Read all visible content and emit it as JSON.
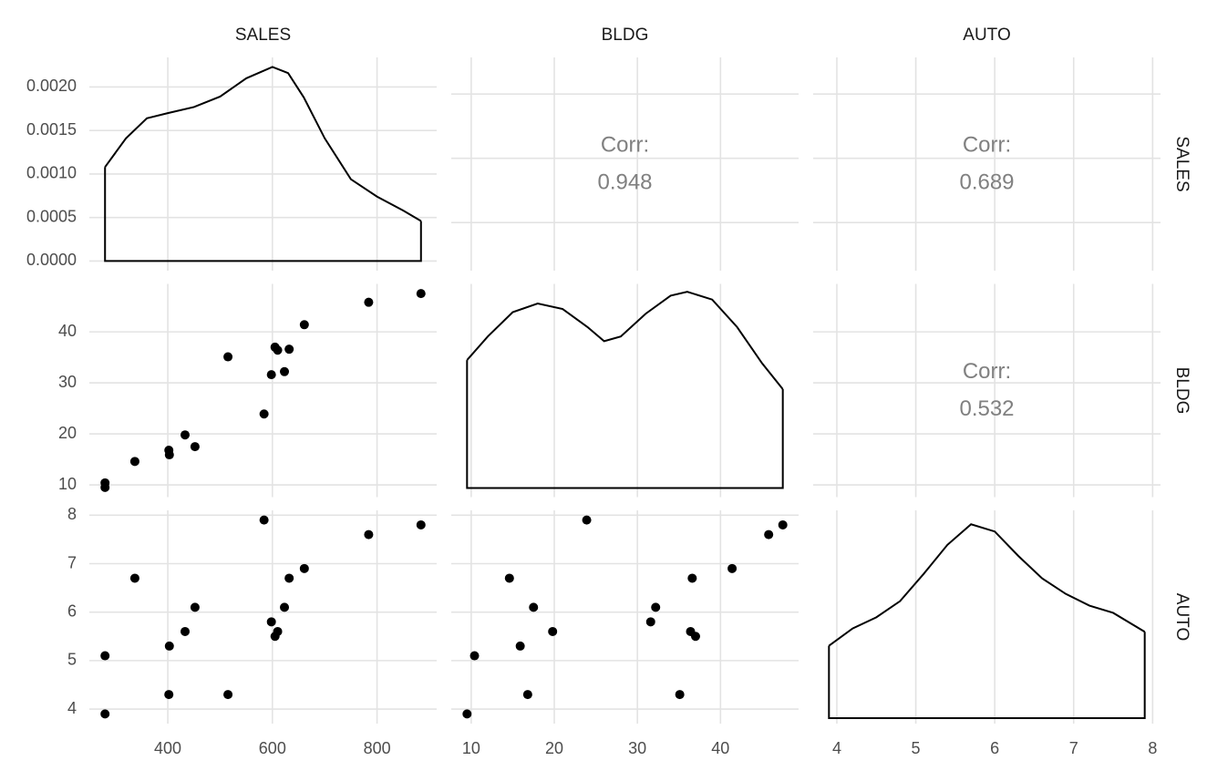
{
  "chart_data": {
    "type": "scatter_matrix",
    "point_color": "#000000",
    "line_color": "#000000",
    "grid": true,
    "variables": [
      {
        "name": "SALES",
        "lim": [
          250,
          914
        ],
        "ticks": [
          400,
          600,
          800
        ],
        "values": [
          280,
          280,
          337,
          403,
          402,
          452,
          433,
          584,
          598,
          623,
          515,
          610,
          632,
          605,
          661,
          784,
          884
        ]
      },
      {
        "name": "BLDG",
        "lim": [
          7.6,
          49.4
        ],
        "ticks": [
          10,
          20,
          30,
          40
        ],
        "values": [
          9.5,
          10.4,
          14.6,
          15.9,
          16.8,
          17.5,
          19.8,
          23.9,
          31.6,
          32.2,
          35.1,
          36.4,
          36.6,
          37.0,
          41.4,
          45.8,
          47.5
        ]
      },
      {
        "name": "AUTO",
        "lim": [
          3.7,
          8.1
        ],
        "ticks": [
          4,
          5,
          6,
          7,
          8
        ],
        "values": [
          3.9,
          5.1,
          6.7,
          5.3,
          4.3,
          6.1,
          5.6,
          7.9,
          5.8,
          6.1,
          4.3,
          5.6,
          6.7,
          5.5,
          6.9,
          7.6,
          7.8
        ]
      }
    ],
    "densities": [
      {
        "x": [
          280,
          320,
          360,
          400,
          450,
          500,
          550,
          600,
          630,
          660,
          700,
          750,
          800,
          850,
          884
        ],
        "y": [
          0.00108,
          0.00141,
          0.00164,
          0.0017,
          0.00177,
          0.00189,
          0.0021,
          0.00223,
          0.00216,
          0.00188,
          0.00141,
          0.00094,
          0.00074,
          0.00058,
          0.00046
        ],
        "ylim": [
          -0.000111,
          0.00234
        ],
        "yticks": [
          {
            "value": 0,
            "label": "0.0000"
          },
          {
            "value": 0.0005,
            "label": "0.0005"
          },
          {
            "value": 0.001,
            "label": "0.0010"
          },
          {
            "value": 0.0015,
            "label": "0.0015"
          },
          {
            "value": 0.002,
            "label": "0.0020"
          }
        ]
      },
      {
        "x": [
          9.5,
          12,
          15,
          18,
          21,
          24,
          26,
          28,
          31,
          34,
          36,
          39,
          42,
          45,
          47.5
        ],
        "y": [
          0.0163,
          0.0193,
          0.0224,
          0.0235,
          0.0228,
          0.0205,
          0.0187,
          0.0193,
          0.0222,
          0.0245,
          0.025,
          0.024,
          0.0205,
          0.0159,
          0.0126
        ],
        "ylim": [
          -0.00116,
          0.026
        ]
      },
      {
        "x": [
          3.9,
          4.2,
          4.5,
          4.8,
          5.1,
          5.4,
          5.7,
          6.0,
          6.3,
          6.6,
          6.9,
          7.2,
          7.5,
          7.9
        ],
        "y": [
          0.13,
          0.161,
          0.181,
          0.21,
          0.259,
          0.311,
          0.348,
          0.335,
          0.291,
          0.251,
          0.223,
          0.202,
          0.189,
          0.155
        ],
        "ylim": [
          -0.0098,
          0.373
        ]
      }
    ],
    "correlations": [
      {
        "label": "Corr:",
        "value": 0.948
      },
      {
        "label": "Corr:",
        "value": 0.689
      },
      {
        "label": "Corr:",
        "value": 0.532
      }
    ]
  }
}
